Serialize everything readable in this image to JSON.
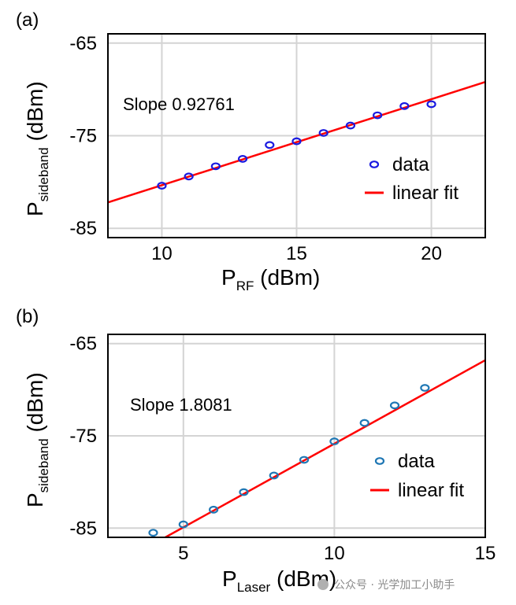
{
  "chart_data": [
    {
      "type": "scatter",
      "panel_label": "(a)",
      "xlabel": "P",
      "xlabel_sub": "RF",
      "xlabel_unit": " (dBm)",
      "ylabel": "P",
      "ylabel_sub": "sideband",
      "ylabel_unit": " (dBm)",
      "xlim": [
        8,
        22
      ],
      "ylim": [
        -86,
        -64
      ],
      "xticks": [
        10,
        15,
        20
      ],
      "yticks": [
        -65,
        -75,
        -85
      ],
      "xtick_labels": [
        "10",
        "15",
        "20"
      ],
      "ytick_labels": [
        "-65",
        "-75",
        "-85"
      ],
      "grid": true,
      "annotation": "Slope 0.92761",
      "legend": {
        "placement": "right",
        "data_label": "data",
        "fit_label": "linear fit"
      },
      "series": [
        {
          "name": "data",
          "marker": "circle",
          "color": "#1a1ae0",
          "x": [
            10,
            11,
            12,
            13,
            14,
            15,
            16,
            17,
            18,
            19,
            20
          ],
          "y": [
            -80.4,
            -79.4,
            -78.3,
            -77.5,
            -76.0,
            -75.6,
            -74.7,
            -73.9,
            -72.8,
            -71.8,
            -71.6
          ]
        },
        {
          "name": "linear fit",
          "type": "line",
          "color": "#ff0000",
          "x": [
            8,
            22
          ],
          "y": [
            -82.2,
            -69.2
          ]
        }
      ]
    },
    {
      "type": "scatter",
      "panel_label": "(b)",
      "xlabel": "P",
      "xlabel_sub": "Laser",
      "xlabel_unit": " (dBm)",
      "ylabel": "P",
      "ylabel_sub": "sideband",
      "ylabel_unit": " (dBm)",
      "xlim": [
        2.5,
        15
      ],
      "ylim": [
        -86,
        -64
      ],
      "xticks": [
        5,
        10,
        15
      ],
      "yticks": [
        -65,
        -75,
        -85
      ],
      "xtick_labels": [
        "5",
        "10",
        "15"
      ],
      "ytick_labels": [
        "-65",
        "-75",
        "-85"
      ],
      "grid": true,
      "annotation": "Slope 1.8081",
      "legend": {
        "placement": "right",
        "data_label": "data",
        "fit_label": "linear fit"
      },
      "series": [
        {
          "name": "data",
          "marker": "circle",
          "color": "#1f77b4",
          "x": [
            4,
            5,
            6,
            7,
            8,
            9,
            10,
            11,
            12,
            13
          ],
          "y": [
            -85.5,
            -84.6,
            -83.0,
            -81.1,
            -79.3,
            -77.6,
            -75.6,
            -73.6,
            -71.7,
            -69.8
          ]
        },
        {
          "name": "linear fit",
          "type": "line",
          "color": "#ff0000",
          "x": [
            4.4,
            15
          ],
          "y": [
            -86.0,
            -66.8
          ]
        }
      ]
    }
  ],
  "watermark": "公众号 · 光学加工小助手"
}
